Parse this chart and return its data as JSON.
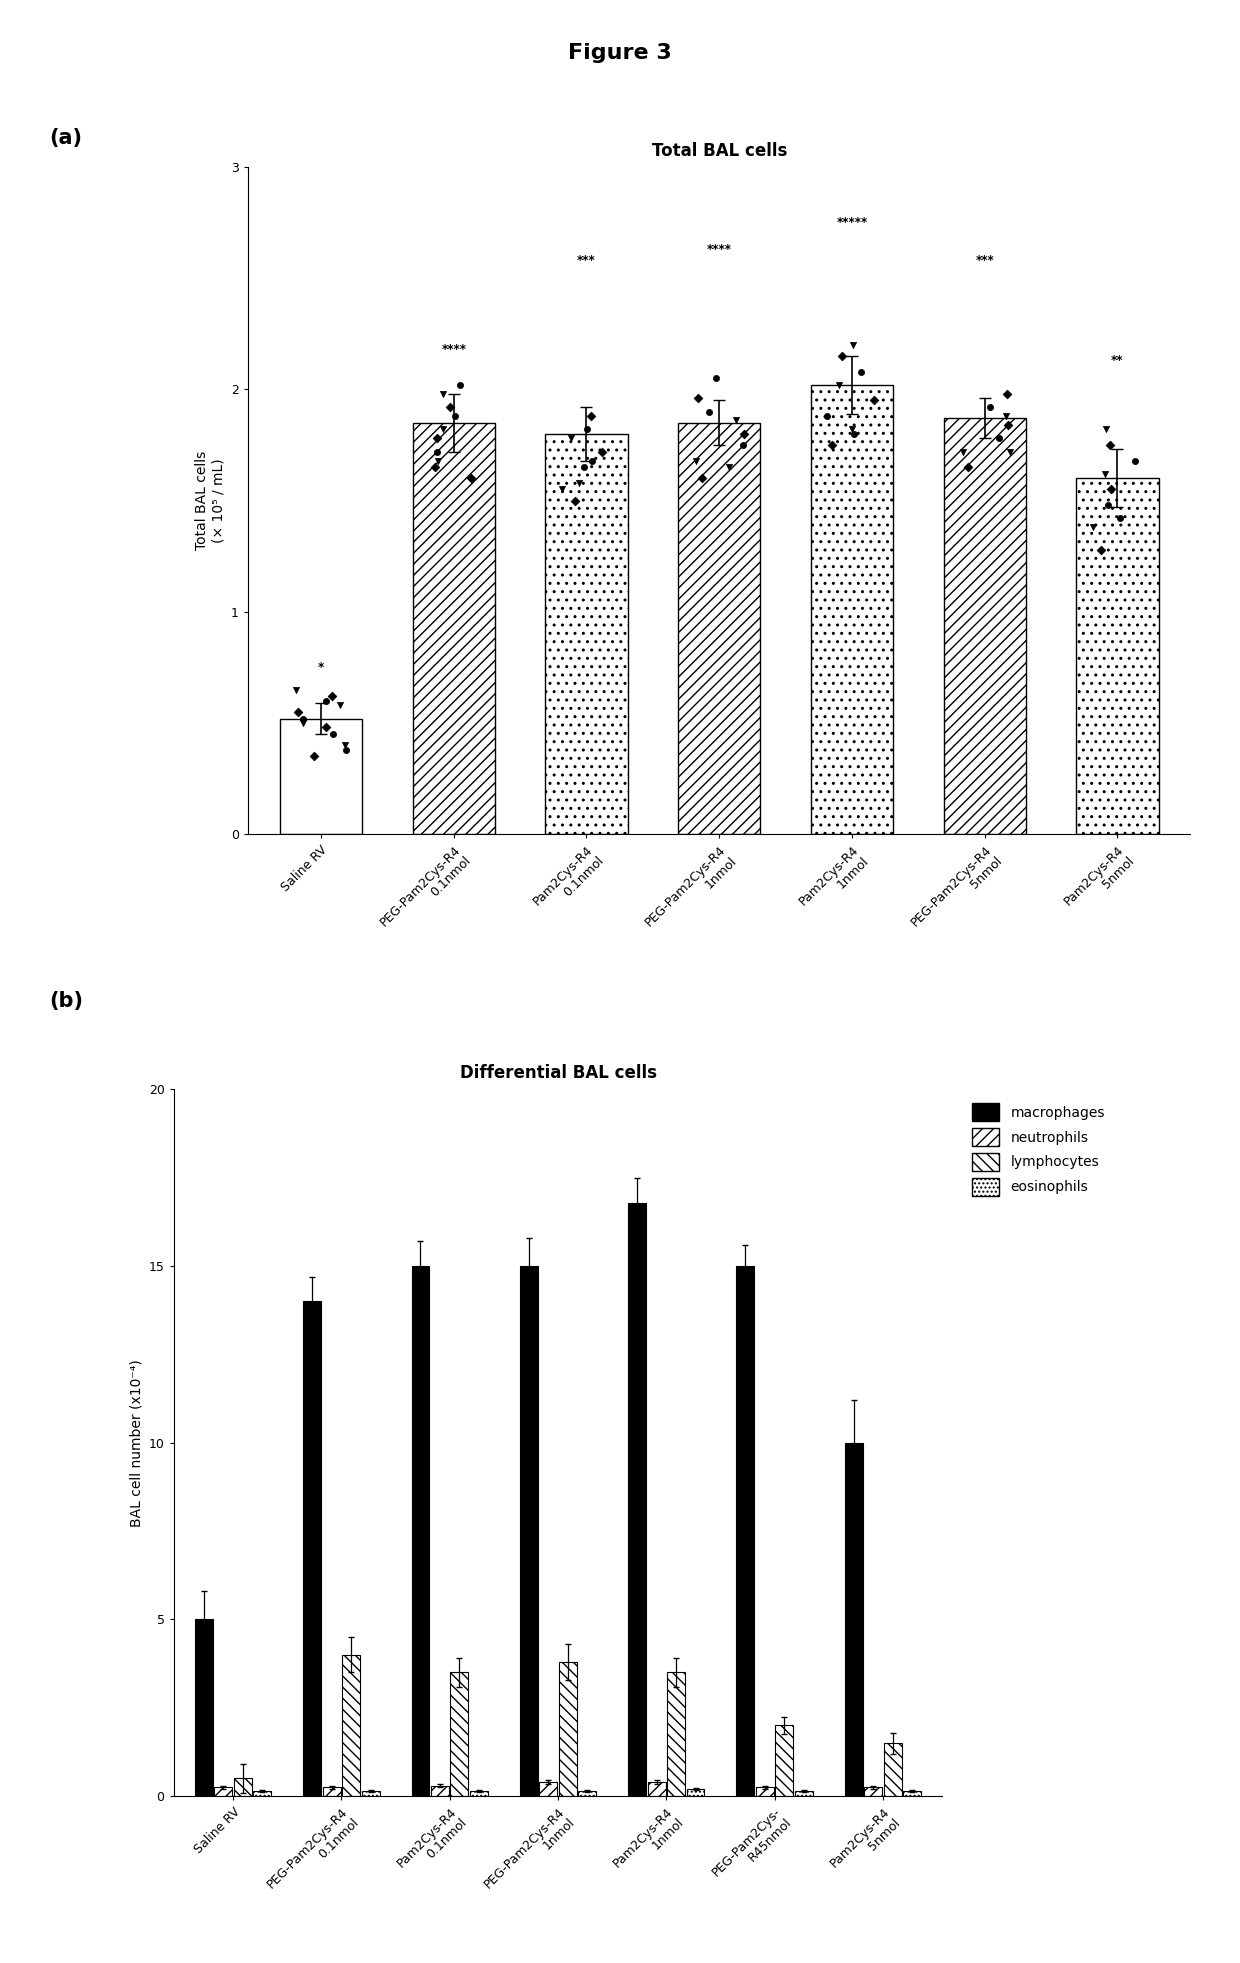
{
  "figure_title": "Figure 3",
  "panel_a": {
    "title": "Total BAL cells",
    "ylabel": "Total BAL cells\n(× 10⁵ / mL)",
    "ylim": [
      0,
      3
    ],
    "yticks": [
      0,
      1,
      2,
      3
    ],
    "categories": [
      "Saline RV",
      "PEG-Pam2Cys-R4\n0.1nmol",
      "Pam2Cys-R4\n0.1nmol",
      "PEG-Pam2Cys-R4\n1nmol",
      "Pam2Cys-R4\n1nmol",
      "PEG-Pam2Cys-R4\n5nmol",
      "Pam2Cys-R4\n5nmol"
    ],
    "bar_heights": [
      0.52,
      1.85,
      1.8,
      1.85,
      2.02,
      1.87,
      1.6
    ],
    "bar_errors": [
      0.07,
      0.13,
      0.12,
      0.1,
      0.13,
      0.09,
      0.13
    ],
    "hatches": [
      "",
      "///",
      "..",
      "///",
      "..",
      "///",
      ".."
    ],
    "bar_colors": [
      "white",
      "white",
      "white",
      "white",
      "white",
      "white",
      "white"
    ],
    "significance": [
      "*",
      "****",
      "***",
      "****",
      "*****",
      "***",
      "**"
    ],
    "sig_heights": [
      0.72,
      2.15,
      2.55,
      2.6,
      2.72,
      2.55,
      2.1
    ],
    "data_points": [
      [
        0.35,
        0.4,
        0.45,
        0.48,
        0.5,
        0.52,
        0.55,
        0.58,
        0.6,
        0.62,
        0.65,
        0.38
      ],
      [
        1.6,
        1.68,
        1.72,
        1.78,
        1.82,
        1.88,
        1.92,
        1.98,
        2.02,
        1.65
      ],
      [
        1.5,
        1.58,
        1.65,
        1.72,
        1.78,
        1.82,
        1.88,
        1.55,
        1.68
      ],
      [
        1.6,
        1.68,
        1.75,
        1.8,
        1.86,
        1.9,
        1.96,
        1.65,
        2.05
      ],
      [
        1.75,
        1.82,
        1.88,
        1.95,
        2.02,
        2.08,
        2.15,
        2.2,
        1.8
      ],
      [
        1.65,
        1.72,
        1.78,
        1.84,
        1.88,
        1.92,
        1.98,
        1.72
      ],
      [
        1.28,
        1.38,
        1.48,
        1.55,
        1.62,
        1.68,
        1.75,
        1.82,
        1.42
      ]
    ]
  },
  "panel_b": {
    "title": "Differential BAL cells",
    "ylabel": "BAL cell number (x10⁻⁴)",
    "ylim": [
      0,
      20
    ],
    "yticks": [
      0,
      5,
      10,
      15,
      20
    ],
    "categories": [
      "Saline RV",
      "PEG-Pam2Cys-R4\n0.1nmol",
      "Pam2Cys-R4\n0.1nmol",
      "PEG-Pam2Cys-R4\n1nmol",
      "Pam2Cys-R4\n1nmol",
      "PEG-Pam2Cys-\nR45nmol",
      "Pam2Cys-R4\n5nmol"
    ],
    "cell_types": [
      "macrophages",
      "neutrophils",
      "lymphocytes",
      "eosinophils"
    ],
    "hatches": [
      "",
      "///",
      "\\\\\\",
      "...."
    ],
    "colors": [
      "black",
      "white",
      "white",
      "white"
    ],
    "macrophages": [
      5.0,
      14.0,
      15.0,
      15.0,
      16.8,
      15.0,
      10.0
    ],
    "neutrophils": [
      0.25,
      0.25,
      0.3,
      0.4,
      0.4,
      0.25,
      0.25
    ],
    "lymphocytes": [
      0.5,
      4.0,
      3.5,
      3.8,
      3.5,
      2.0,
      1.5
    ],
    "eosinophils": [
      0.15,
      0.15,
      0.15,
      0.15,
      0.2,
      0.15,
      0.15
    ],
    "macrophages_err": [
      0.8,
      0.7,
      0.7,
      0.8,
      0.7,
      0.6,
      1.2
    ],
    "neutrophils_err": [
      0.05,
      0.05,
      0.05,
      0.05,
      0.05,
      0.05,
      0.05
    ],
    "lymphocytes_err": [
      0.4,
      0.5,
      0.4,
      0.5,
      0.4,
      0.25,
      0.3
    ],
    "eosinophils_err": [
      0.03,
      0.03,
      0.03,
      0.03,
      0.03,
      0.03,
      0.03
    ]
  }
}
